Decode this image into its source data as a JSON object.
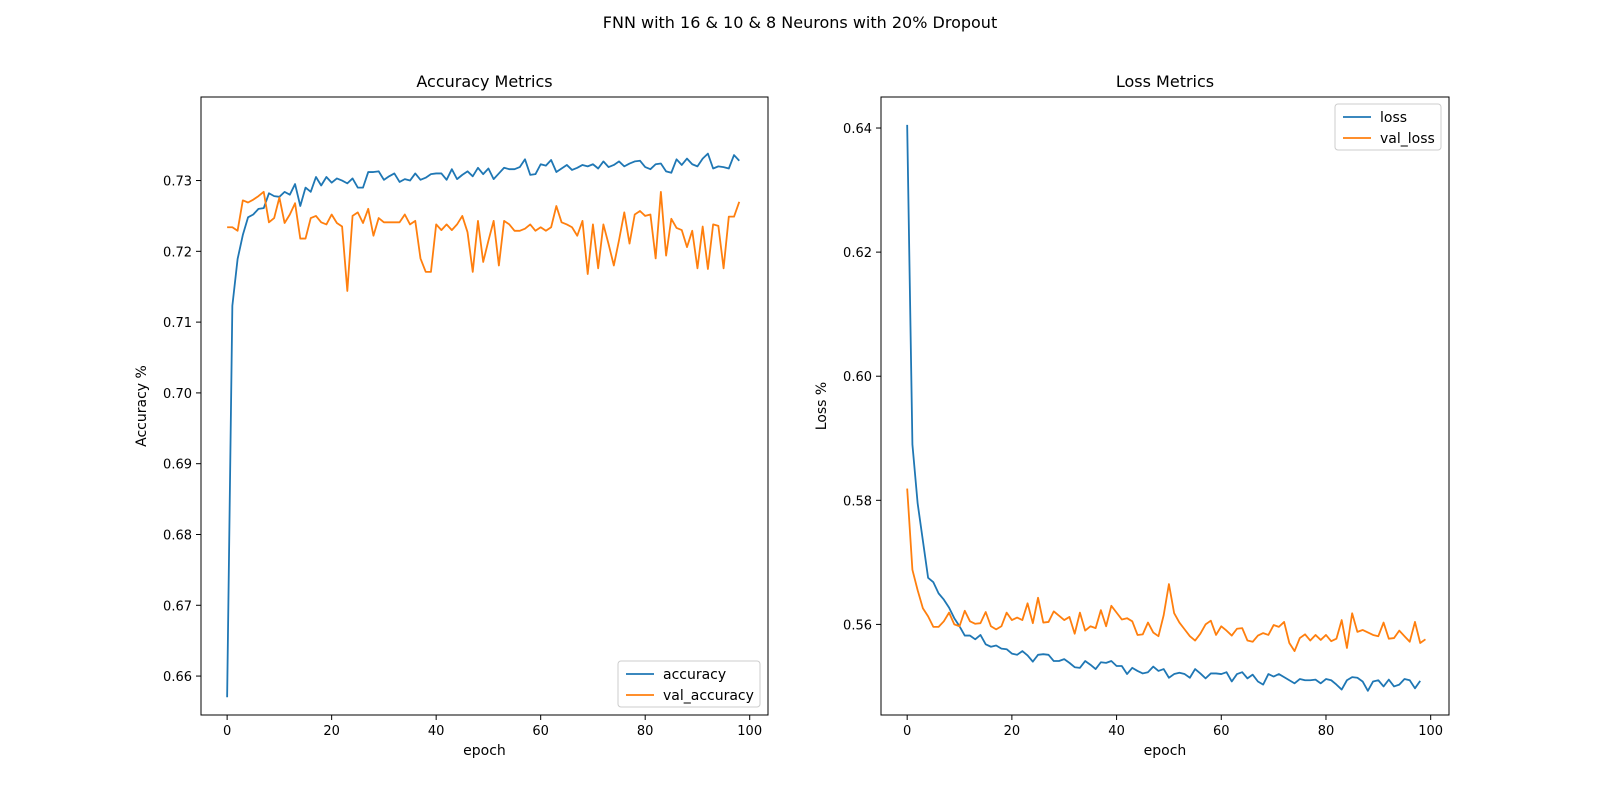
{
  "suptitle": "FNN with 16 & 10 & 8 Neurons with 20% Dropout",
  "chart_data": [
    {
      "type": "line",
      "title": "Accuracy Metrics",
      "xlabel": "epoch",
      "ylabel": "Accuracy %",
      "xlim": [
        -5,
        103.5
      ],
      "ylim": [
        0.6545,
        0.7418
      ],
      "xticks": [
        0,
        20,
        40,
        60,
        80,
        100
      ],
      "yticks": [
        0.66,
        0.67,
        0.68,
        0.69,
        0.7,
        0.71,
        0.72,
        0.73
      ],
      "ytick_labels": [
        "0.66",
        "0.67",
        "0.68",
        "0.69",
        "0.70",
        "0.71",
        "0.72",
        "0.73"
      ],
      "grid": false,
      "legend_position": "lower-right",
      "series": [
        {
          "name": "accuracy",
          "color": "#1f77b4",
          "values": [
            0.657,
            0.7123,
            0.7189,
            0.7223,
            0.7248,
            0.7252,
            0.726,
            0.7261,
            0.7282,
            0.7278,
            0.7277,
            0.7284,
            0.728,
            0.7295,
            0.7264,
            0.729,
            0.7284,
            0.7305,
            0.7293,
            0.7305,
            0.7297,
            0.7303,
            0.73,
            0.7296,
            0.7303,
            0.729,
            0.729,
            0.7312,
            0.7312,
            0.7313,
            0.7301,
            0.7306,
            0.731,
            0.7298,
            0.7302,
            0.73,
            0.731,
            0.7301,
            0.7304,
            0.7309,
            0.731,
            0.731,
            0.7301,
            0.7316,
            0.7302,
            0.7308,
            0.7313,
            0.7306,
            0.7318,
            0.7309,
            0.7317,
            0.7302,
            0.731,
            0.7318,
            0.7316,
            0.7316,
            0.7319,
            0.733,
            0.7308,
            0.7309,
            0.7323,
            0.7321,
            0.7329,
            0.7312,
            0.7317,
            0.7322,
            0.7315,
            0.7318,
            0.7322,
            0.732,
            0.7323,
            0.7317,
            0.7327,
            0.7319,
            0.7322,
            0.7327,
            0.732,
            0.7324,
            0.7327,
            0.7328,
            0.7319,
            0.7316,
            0.7323,
            0.7324,
            0.7313,
            0.7311,
            0.733,
            0.7322,
            0.7331,
            0.7323,
            0.732,
            0.7331,
            0.7338,
            0.7317,
            0.732,
            0.7319,
            0.7317,
            0.7336,
            0.7328
          ]
        },
        {
          "name": "val_accuracy",
          "color": "#ff7f0e",
          "values": [
            0.7234,
            0.7234,
            0.7229,
            0.7272,
            0.7269,
            0.7273,
            0.7278,
            0.7284,
            0.7241,
            0.7247,
            0.7276,
            0.724,
            0.7252,
            0.7268,
            0.7218,
            0.7218,
            0.7247,
            0.725,
            0.7241,
            0.7238,
            0.7252,
            0.724,
            0.7235,
            0.7144,
            0.725,
            0.7255,
            0.724,
            0.726,
            0.7222,
            0.7247,
            0.7241,
            0.7241,
            0.7241,
            0.7241,
            0.7252,
            0.7238,
            0.7243,
            0.719,
            0.7171,
            0.7171,
            0.7238,
            0.723,
            0.7238,
            0.723,
            0.7238,
            0.725,
            0.7227,
            0.7171,
            0.7243,
            0.7185,
            0.7215,
            0.7243,
            0.718,
            0.7243,
            0.7238,
            0.7229,
            0.7229,
            0.7232,
            0.7238,
            0.7229,
            0.7234,
            0.7229,
            0.7234,
            0.7264,
            0.7241,
            0.7238,
            0.7234,
            0.7222,
            0.7243,
            0.7168,
            0.7238,
            0.7176,
            0.7238,
            0.721,
            0.718,
            0.7216,
            0.7255,
            0.7211,
            0.7252,
            0.7257,
            0.725,
            0.7252,
            0.719,
            0.7284,
            0.7194,
            0.7246,
            0.7233,
            0.723,
            0.7206,
            0.7229,
            0.7176,
            0.7235,
            0.7175,
            0.7238,
            0.7236,
            0.7176,
            0.7249,
            0.7249,
            0.727
          ]
        }
      ]
    },
    {
      "type": "line",
      "title": "Loss Metrics",
      "xlabel": "epoch",
      "ylabel": "Loss %",
      "xlim": [
        -5,
        103.5
      ],
      "ylim": [
        0.5454,
        0.645
      ],
      "xticks": [
        0,
        20,
        40,
        60,
        80,
        100
      ],
      "yticks": [
        0.56,
        0.58,
        0.6,
        0.62,
        0.64
      ],
      "ytick_labels": [
        "0.56",
        "0.58",
        "0.60",
        "0.62",
        "0.64"
      ],
      "grid": false,
      "legend_position": "upper-right",
      "series": [
        {
          "name": "loss",
          "color": "#1f77b4",
          "values": [
            0.6405,
            0.589,
            0.5795,
            0.5735,
            0.5675,
            0.5668,
            0.565,
            0.564,
            0.5627,
            0.561,
            0.5597,
            0.5582,
            0.5582,
            0.5576,
            0.5583,
            0.5568,
            0.5564,
            0.5566,
            0.5561,
            0.556,
            0.5553,
            0.5551,
            0.5557,
            0.555,
            0.554,
            0.5551,
            0.5552,
            0.5551,
            0.5541,
            0.5541,
            0.5544,
            0.5538,
            0.5531,
            0.553,
            0.5541,
            0.5535,
            0.5528,
            0.5539,
            0.5538,
            0.5541,
            0.5533,
            0.5533,
            0.552,
            0.553,
            0.5525,
            0.5521,
            0.5523,
            0.5532,
            0.5525,
            0.5528,
            0.5514,
            0.552,
            0.5522,
            0.552,
            0.5514,
            0.5528,
            0.5521,
            0.5513,
            0.5521,
            0.5521,
            0.552,
            0.5523,
            0.5508,
            0.552,
            0.5523,
            0.5513,
            0.5519,
            0.5508,
            0.5503,
            0.552,
            0.5516,
            0.552,
            0.5515,
            0.551,
            0.5505,
            0.5512,
            0.551,
            0.551,
            0.5511,
            0.5505,
            0.5512,
            0.551,
            0.5503,
            0.5495,
            0.551,
            0.5515,
            0.5514,
            0.5508,
            0.5493,
            0.5508,
            0.551,
            0.55,
            0.5511,
            0.55,
            0.5503,
            0.5512,
            0.551,
            0.5497,
            0.5509
          ]
        },
        {
          "name": "val_loss",
          "color": "#ff7f0e",
          "values": [
            0.5819,
            0.5688,
            0.5655,
            0.5626,
            0.5613,
            0.5596,
            0.5596,
            0.5605,
            0.5619,
            0.56,
            0.5597,
            0.5622,
            0.5605,
            0.5601,
            0.5602,
            0.562,
            0.5597,
            0.5592,
            0.5597,
            0.5619,
            0.5607,
            0.5611,
            0.5607,
            0.5634,
            0.5602,
            0.5643,
            0.5603,
            0.5604,
            0.5621,
            0.5614,
            0.5607,
            0.5612,
            0.5585,
            0.5619,
            0.559,
            0.5597,
            0.5594,
            0.5623,
            0.5597,
            0.563,
            0.5619,
            0.5608,
            0.561,
            0.5605,
            0.5583,
            0.5584,
            0.5603,
            0.5587,
            0.5581,
            0.5615,
            0.5665,
            0.5618,
            0.5603,
            0.5592,
            0.5581,
            0.5574,
            0.5585,
            0.56,
            0.5606,
            0.5583,
            0.5597,
            0.559,
            0.5582,
            0.5593,
            0.5594,
            0.5574,
            0.5572,
            0.5582,
            0.5586,
            0.5583,
            0.5599,
            0.5596,
            0.5604,
            0.557,
            0.5557,
            0.5578,
            0.5584,
            0.5574,
            0.5583,
            0.5575,
            0.5583,
            0.5573,
            0.5577,
            0.5607,
            0.5562,
            0.5618,
            0.5588,
            0.5591,
            0.5587,
            0.5583,
            0.5581,
            0.5603,
            0.5577,
            0.5578,
            0.559,
            0.5581,
            0.5572,
            0.5604,
            0.557,
            0.5576
          ]
        }
      ]
    }
  ]
}
